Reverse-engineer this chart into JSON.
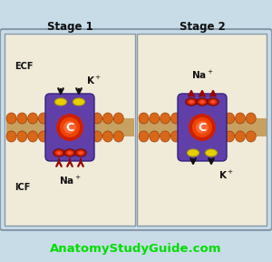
{
  "bg_color": "#c8dce8",
  "panel_bg": "#f0ead8",
  "membrane_tail_color": "#c8a060",
  "membrane_head_color": "#d86818",
  "protein_color": "#6040a8",
  "center_outer": "#cc2000",
  "center_mid": "#ee4400",
  "center_inner": "#ff6633",
  "yellow_oval_fill": "#e8d000",
  "yellow_oval_edge": "#b0a000",
  "red_oval_outer": "#aa1800",
  "red_oval_inner": "#ee3311",
  "red_oval_bright": "#ff5533",
  "arrow_black": "#111111",
  "arrow_red": "#990000",
  "text_color": "#111111",
  "title1": "Stage 1",
  "title2": "Stage 2",
  "ecf_label": "ECF",
  "icf_label": "ICF",
  "watermark": "AnatomyStudyGuide.com",
  "watermark_color": "#00dd00",
  "border_color": "#8899aa"
}
